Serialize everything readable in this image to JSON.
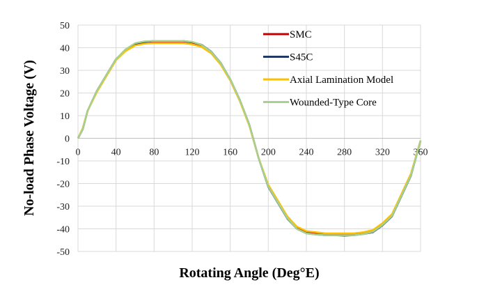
{
  "chart_data": {
    "type": "line",
    "title": "",
    "xlabel": "Rotating Angle (Deg°E)",
    "ylabel": "No-load Phase Voltage (V)",
    "xlim": [
      0,
      360
    ],
    "ylim": [
      -50,
      50
    ],
    "xticks": [
      0,
      40,
      80,
      120,
      160,
      200,
      240,
      280,
      320,
      360
    ],
    "yticks": [
      50,
      40,
      30,
      20,
      10,
      0,
      -10,
      -20,
      -30,
      -40,
      -50
    ],
    "grid": true,
    "legend_position": "top-right",
    "x": [
      0,
      5,
      10,
      20,
      30,
      40,
      50,
      60,
      70,
      80,
      90,
      100,
      110,
      120,
      130,
      140,
      150,
      160,
      170,
      180,
      190,
      200,
      210,
      220,
      230,
      240,
      250,
      260,
      270,
      280,
      290,
      300,
      310,
      320,
      330,
      340,
      350,
      360
    ],
    "series": [
      {
        "name": "SMC",
        "color": "#c00000",
        "values": [
          0,
          4,
          12,
          21,
          28,
          35,
          39,
          41.5,
          42.5,
          42.8,
          42.8,
          42.8,
          42.8,
          42.3,
          41,
          38,
          33,
          26,
          17,
          6,
          -9,
          -21,
          -28,
          -35,
          -39.5,
          -41.5,
          -42,
          -42.5,
          -42.5,
          -42.5,
          -42.5,
          -42,
          -41,
          -38,
          -34,
          -25,
          -16,
          -1
        ]
      },
      {
        "name": "S45C",
        "color": "#1f3864",
        "values": [
          0,
          4,
          12,
          21,
          28,
          35,
          39,
          41.8,
          42.6,
          43,
          43,
          43,
          43,
          42.5,
          41.3,
          38.3,
          33.3,
          26,
          17,
          6,
          -9,
          -21.5,
          -28.5,
          -35.5,
          -40,
          -42,
          -42.5,
          -42.8,
          -42.8,
          -43,
          -42.8,
          -42.3,
          -41.5,
          -38.5,
          -34.5,
          -25.5,
          -16.5,
          -1
        ]
      },
      {
        "name": "Axial Lamination Model",
        "color": "#ffc000",
        "values": [
          0,
          4.5,
          12,
          20.5,
          27.5,
          34.5,
          38.5,
          41,
          41.8,
          42,
          42,
          42,
          42,
          41.5,
          40.3,
          37.5,
          32.5,
          25.5,
          16.5,
          5.5,
          -9,
          -20.5,
          -27.5,
          -34.5,
          -39,
          -41,
          -41.5,
          -42,
          -42,
          -42,
          -42,
          -41.5,
          -40.5,
          -37.5,
          -33.5,
          -24.5,
          -15.5,
          -1
        ]
      },
      {
        "name": "Wounded-Type Core",
        "color": "#a9d18e",
        "values": [
          0,
          4,
          12,
          21,
          28,
          35,
          39.3,
          42,
          42.8,
          43,
          43,
          43,
          43,
          42.6,
          41.2,
          38.2,
          33.2,
          26,
          17,
          6,
          -9,
          -21.3,
          -28.3,
          -35.3,
          -40,
          -42,
          -42.5,
          -42.8,
          -42.8,
          -42.8,
          -42.8,
          -42.3,
          -41.3,
          -38.3,
          -34.3,
          -25.3,
          -16.3,
          -1
        ]
      }
    ]
  }
}
